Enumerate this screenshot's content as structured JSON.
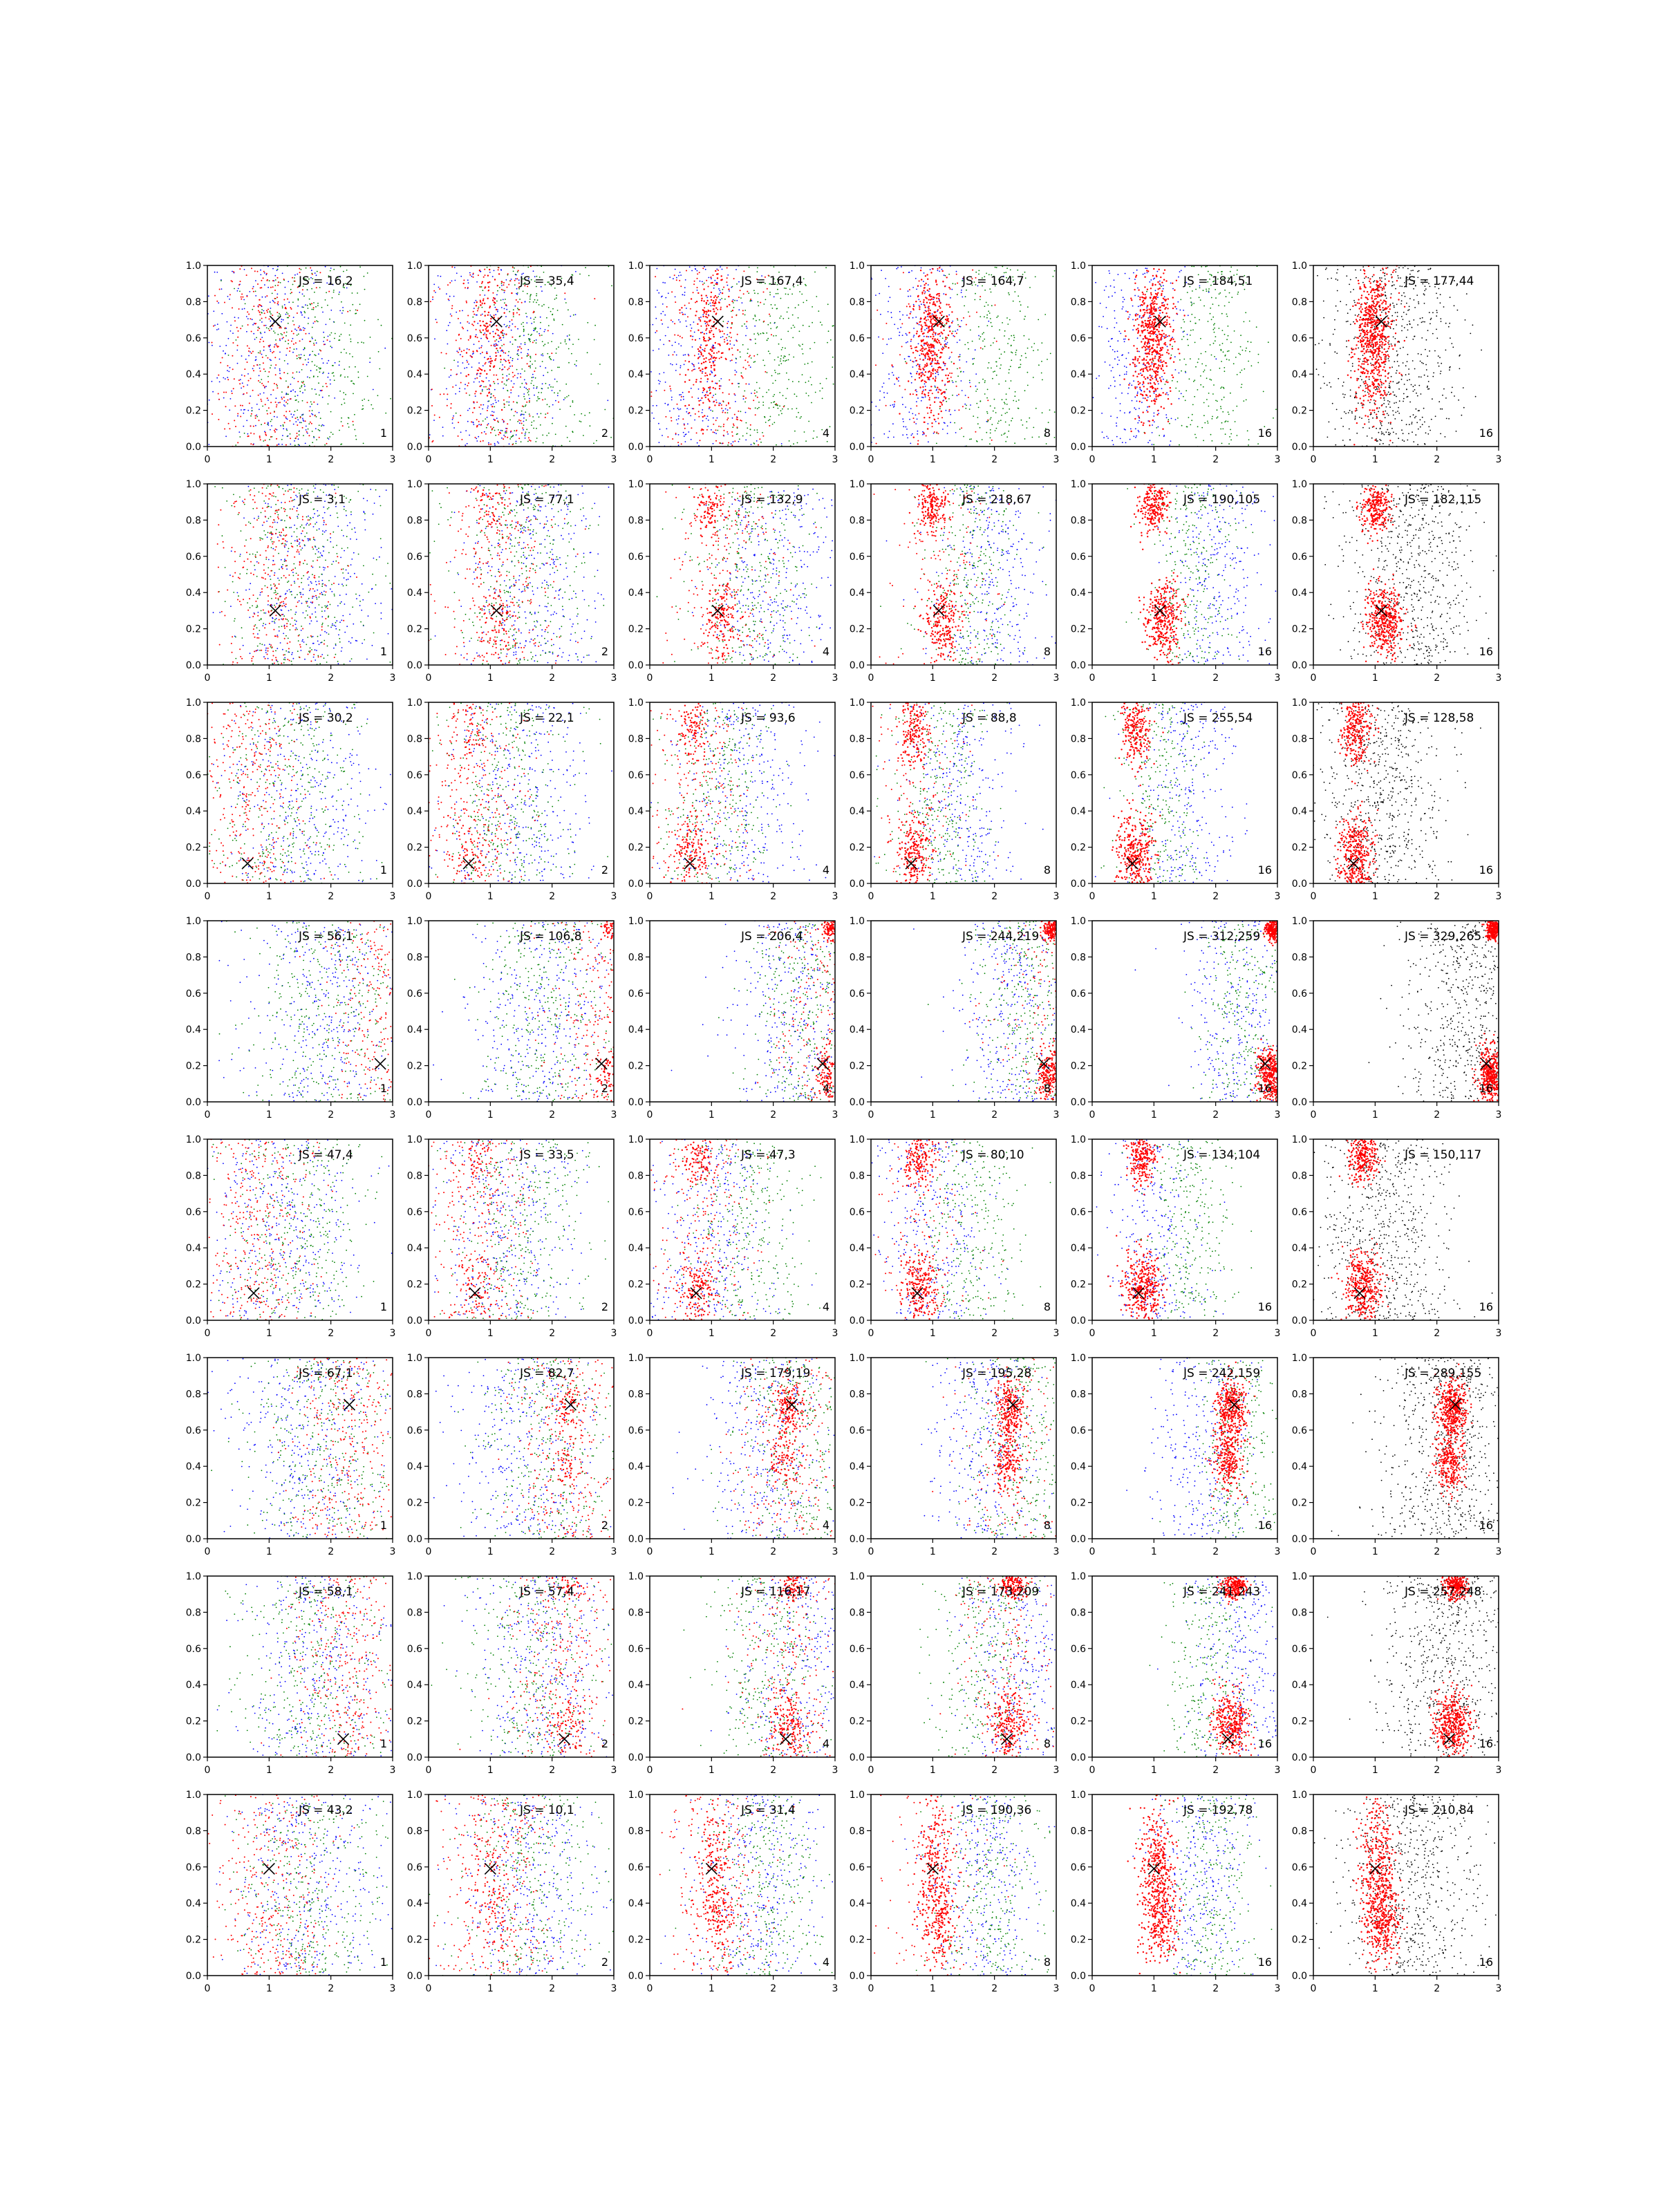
{
  "chart_data": {
    "type": "scatter",
    "layout": {
      "rows": 8,
      "cols": 6
    },
    "xlim": [
      0,
      3
    ],
    "ylim": [
      0,
      1
    ],
    "xticks": [
      "0",
      "1",
      "2",
      "3"
    ],
    "yticks": [
      "0.0",
      "0.2",
      "0.4",
      "0.6",
      "0.8",
      "1.0"
    ],
    "grid": false,
    "colors": {
      "red": "#ff0000",
      "green": "#008000",
      "blue": "#0000ff",
      "black": "#000000"
    },
    "columns": [
      {
        "count": "1",
        "series": [
          "blue",
          "green",
          "red"
        ]
      },
      {
        "count": "2",
        "series": [
          "blue",
          "green",
          "red"
        ]
      },
      {
        "count": "4",
        "series": [
          "blue",
          "green",
          "red"
        ]
      },
      {
        "count": "8",
        "series": [
          "blue",
          "green",
          "red"
        ]
      },
      {
        "count": "16",
        "series": [
          "blue",
          "green",
          "red"
        ]
      },
      {
        "count": "16",
        "series": [
          "black",
          "red"
        ]
      }
    ],
    "rows": [
      {
        "marker": {
          "x": 1.1,
          "y": 0.69
        },
        "red_clusters": [
          {
            "x": 1.0,
            "y": 0.7,
            "sx": 0.15,
            "sy": 0.14
          },
          {
            "x": 0.95,
            "y": 0.42,
            "sx": 0.15,
            "sy": 0.16
          }
        ],
        "green_center": 2.0,
        "blue_center": 0.75,
        "panels": [
          {
            "label": "JS = 16,2"
          },
          {
            "label": "JS = 35,4"
          },
          {
            "label": "JS = 167,4"
          },
          {
            "label": "JS = 164,7"
          },
          {
            "label": "JS = 184,51"
          },
          {
            "label": "JS = 177,44"
          }
        ]
      },
      {
        "marker": {
          "x": 1.1,
          "y": 0.3
        },
        "red_clusters": [
          {
            "x": 1.15,
            "y": 0.25,
            "sx": 0.15,
            "sy": 0.1
          },
          {
            "x": 1.0,
            "y": 0.88,
            "sx": 0.12,
            "sy": 0.07
          }
        ],
        "green_center": 1.6,
        "blue_center": 2.0,
        "panels": [
          {
            "label": "JS = 3,1"
          },
          {
            "label": "JS = 77,1"
          },
          {
            "label": "JS = 132,9"
          },
          {
            "label": "JS = 218,67"
          },
          {
            "label": "JS = 190,105"
          },
          {
            "label": "JS = 182,115"
          }
        ]
      },
      {
        "marker": {
          "x": 0.65,
          "y": 0.11
        },
        "red_clusters": [
          {
            "x": 0.7,
            "y": 0.15,
            "sx": 0.15,
            "sy": 0.12
          },
          {
            "x": 0.7,
            "y": 0.85,
            "sx": 0.12,
            "sy": 0.1
          }
        ],
        "green_center": 1.1,
        "blue_center": 1.5,
        "panels": [
          {
            "label": "JS = 30,2"
          },
          {
            "label": "JS = 22,1"
          },
          {
            "label": "JS = 93,6"
          },
          {
            "label": "JS = 88,8"
          },
          {
            "label": "JS = 255,54"
          },
          {
            "label": "JS = 128,58"
          }
        ]
      },
      {
        "marker": {
          "x": 2.8,
          "y": 0.21
        },
        "red_clusters": [
          {
            "x": 2.88,
            "y": 0.15,
            "sx": 0.1,
            "sy": 0.08
          },
          {
            "x": 2.92,
            "y": 0.95,
            "sx": 0.06,
            "sy": 0.03
          }
        ],
        "green_center": 2.5,
        "blue_center": 2.3,
        "panels": [
          {
            "label": "JS = 56,1"
          },
          {
            "label": "JS = 106,8"
          },
          {
            "label": "JS = 206,4"
          },
          {
            "label": "JS = 244,219"
          },
          {
            "label": "JS = 312,259"
          },
          {
            "label": "JS = 329,265"
          }
        ]
      },
      {
        "marker": {
          "x": 0.75,
          "y": 0.15
        },
        "red_clusters": [
          {
            "x": 0.8,
            "y": 0.18,
            "sx": 0.15,
            "sy": 0.1
          },
          {
            "x": 0.8,
            "y": 0.9,
            "sx": 0.12,
            "sy": 0.07
          }
        ],
        "green_center": 1.6,
        "blue_center": 1.0,
        "panels": [
          {
            "label": "JS = 47,4"
          },
          {
            "label": "JS = 33,5"
          },
          {
            "label": "JS = 47,3"
          },
          {
            "label": "JS = 80,10"
          },
          {
            "label": "JS = 134,104"
          },
          {
            "label": "JS = 150,117"
          }
        ]
      },
      {
        "marker": {
          "x": 2.3,
          "y": 0.74
        },
        "red_clusters": [
          {
            "x": 2.25,
            "y": 0.72,
            "sx": 0.12,
            "sy": 0.08
          },
          {
            "x": 2.2,
            "y": 0.42,
            "sx": 0.12,
            "sy": 0.08
          }
        ],
        "green_center": 2.4,
        "blue_center": 1.8,
        "panels": [
          {
            "label": "JS = 67,1"
          },
          {
            "label": "JS = 82,7"
          },
          {
            "label": "JS = 179,19"
          },
          {
            "label": "JS = 195,28"
          },
          {
            "label": "JS = 242,159"
          },
          {
            "label": "JS = 289,155"
          }
        ]
      },
      {
        "marker": {
          "x": 2.2,
          "y": 0.1
        },
        "red_clusters": [
          {
            "x": 2.25,
            "y": 0.18,
            "sx": 0.15,
            "sy": 0.09
          },
          {
            "x": 2.3,
            "y": 0.95,
            "sx": 0.1,
            "sy": 0.04
          }
        ],
        "green_center": 1.9,
        "blue_center": 2.4,
        "panels": [
          {
            "label": "JS = 58,1"
          },
          {
            "label": "JS = 57,4"
          },
          {
            "label": "JS = 116,17"
          },
          {
            "label": "JS = 173,209"
          },
          {
            "label": "JS = 241,243"
          },
          {
            "label": "JS = 257,248"
          }
        ]
      },
      {
        "marker": {
          "x": 1.0,
          "y": 0.59
        },
        "red_clusters": [
          {
            "x": 1.05,
            "y": 0.6,
            "sx": 0.15,
            "sy": 0.2
          },
          {
            "x": 1.1,
            "y": 0.3,
            "sx": 0.15,
            "sy": 0.12
          }
        ],
        "green_center": 1.9,
        "blue_center": 1.8,
        "panels": [
          {
            "label": "JS = 43,2"
          },
          {
            "label": "JS = 10,1"
          },
          {
            "label": "JS = 31,4"
          },
          {
            "label": "JS = 190,36"
          },
          {
            "label": "JS = 192,78"
          },
          {
            "label": "JS = 210,84"
          }
        ]
      }
    ]
  }
}
